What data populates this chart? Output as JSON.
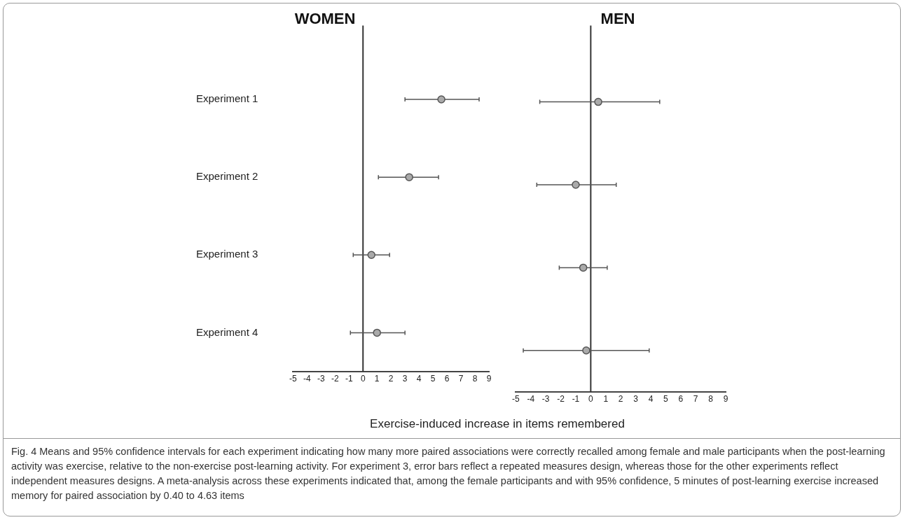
{
  "chart_data": [
    {
      "type": "scatter",
      "orientation": "horizontal",
      "title": "WOMEN",
      "xlabel": "Exercise-induced increase in items remembered",
      "categories": [
        "Experiment 1",
        "Experiment 2",
        "Experiment 3",
        "Experiment 4"
      ],
      "series": [
        {
          "color": "#aaaaaa",
          "values": [
            5.6,
            3.3,
            0.6,
            1.0
          ],
          "errors": [
            [
              3.0,
              8.3
            ],
            [
              1.1,
              5.4
            ],
            [
              -0.7,
              1.9
            ],
            [
              -0.9,
              3.0
            ]
          ]
        }
      ],
      "xlim": [
        -5,
        9
      ],
      "xticks": [
        -5,
        -4,
        -3,
        -2,
        -1,
        0,
        1,
        2,
        3,
        4,
        5,
        6,
        7,
        8,
        9
      ],
      "marker": "circle",
      "grid": false,
      "ref_lines": [
        {
          "axis": "x",
          "value": 0,
          "color": "#333333"
        }
      ],
      "annotations": [
        "Fig. 4 Means and 95% confidence intervals for each experiment indicating how many more paired associations were correctly recalled among female and male participants when the post-learning activity was exercise, relative to the non-exercise post-learning activity. For experiment 3, error bars reflect a repeated measures design, whereas those for the other experiments reflect independent measures designs. A meta-analysis across these experiments indicated that, among the female participants and with 95% confidence, 5 minutes of post-learning exercise increased memory for paired association by 0.40 to 4.63 items"
      ]
    },
    {
      "type": "scatter",
      "orientation": "horizontal",
      "title": "MEN",
      "categories": [
        null,
        null,
        null,
        null
      ],
      "series": [
        {
          "color": "#aaaaaa",
          "values": [
            0.5,
            -1.0,
            -0.5,
            -0.3
          ],
          "errors": [
            [
              -3.4,
              4.6
            ],
            [
              -3.6,
              1.7
            ],
            [
              -2.1,
              1.1
            ],
            [
              -4.5,
              3.9
            ]
          ]
        }
      ],
      "xlim": [
        -5,
        9
      ],
      "xticks": [
        -5,
        -4,
        -3,
        -2,
        -1,
        0,
        1,
        2,
        3,
        4,
        5,
        6,
        7,
        8,
        9
      ],
      "marker": "circle",
      "grid": false,
      "tick_labels": "x",
      "ref_lines": [
        {
          "axis": "x",
          "value": 0,
          "color": "#333333"
        }
      ]
    }
  ]
}
